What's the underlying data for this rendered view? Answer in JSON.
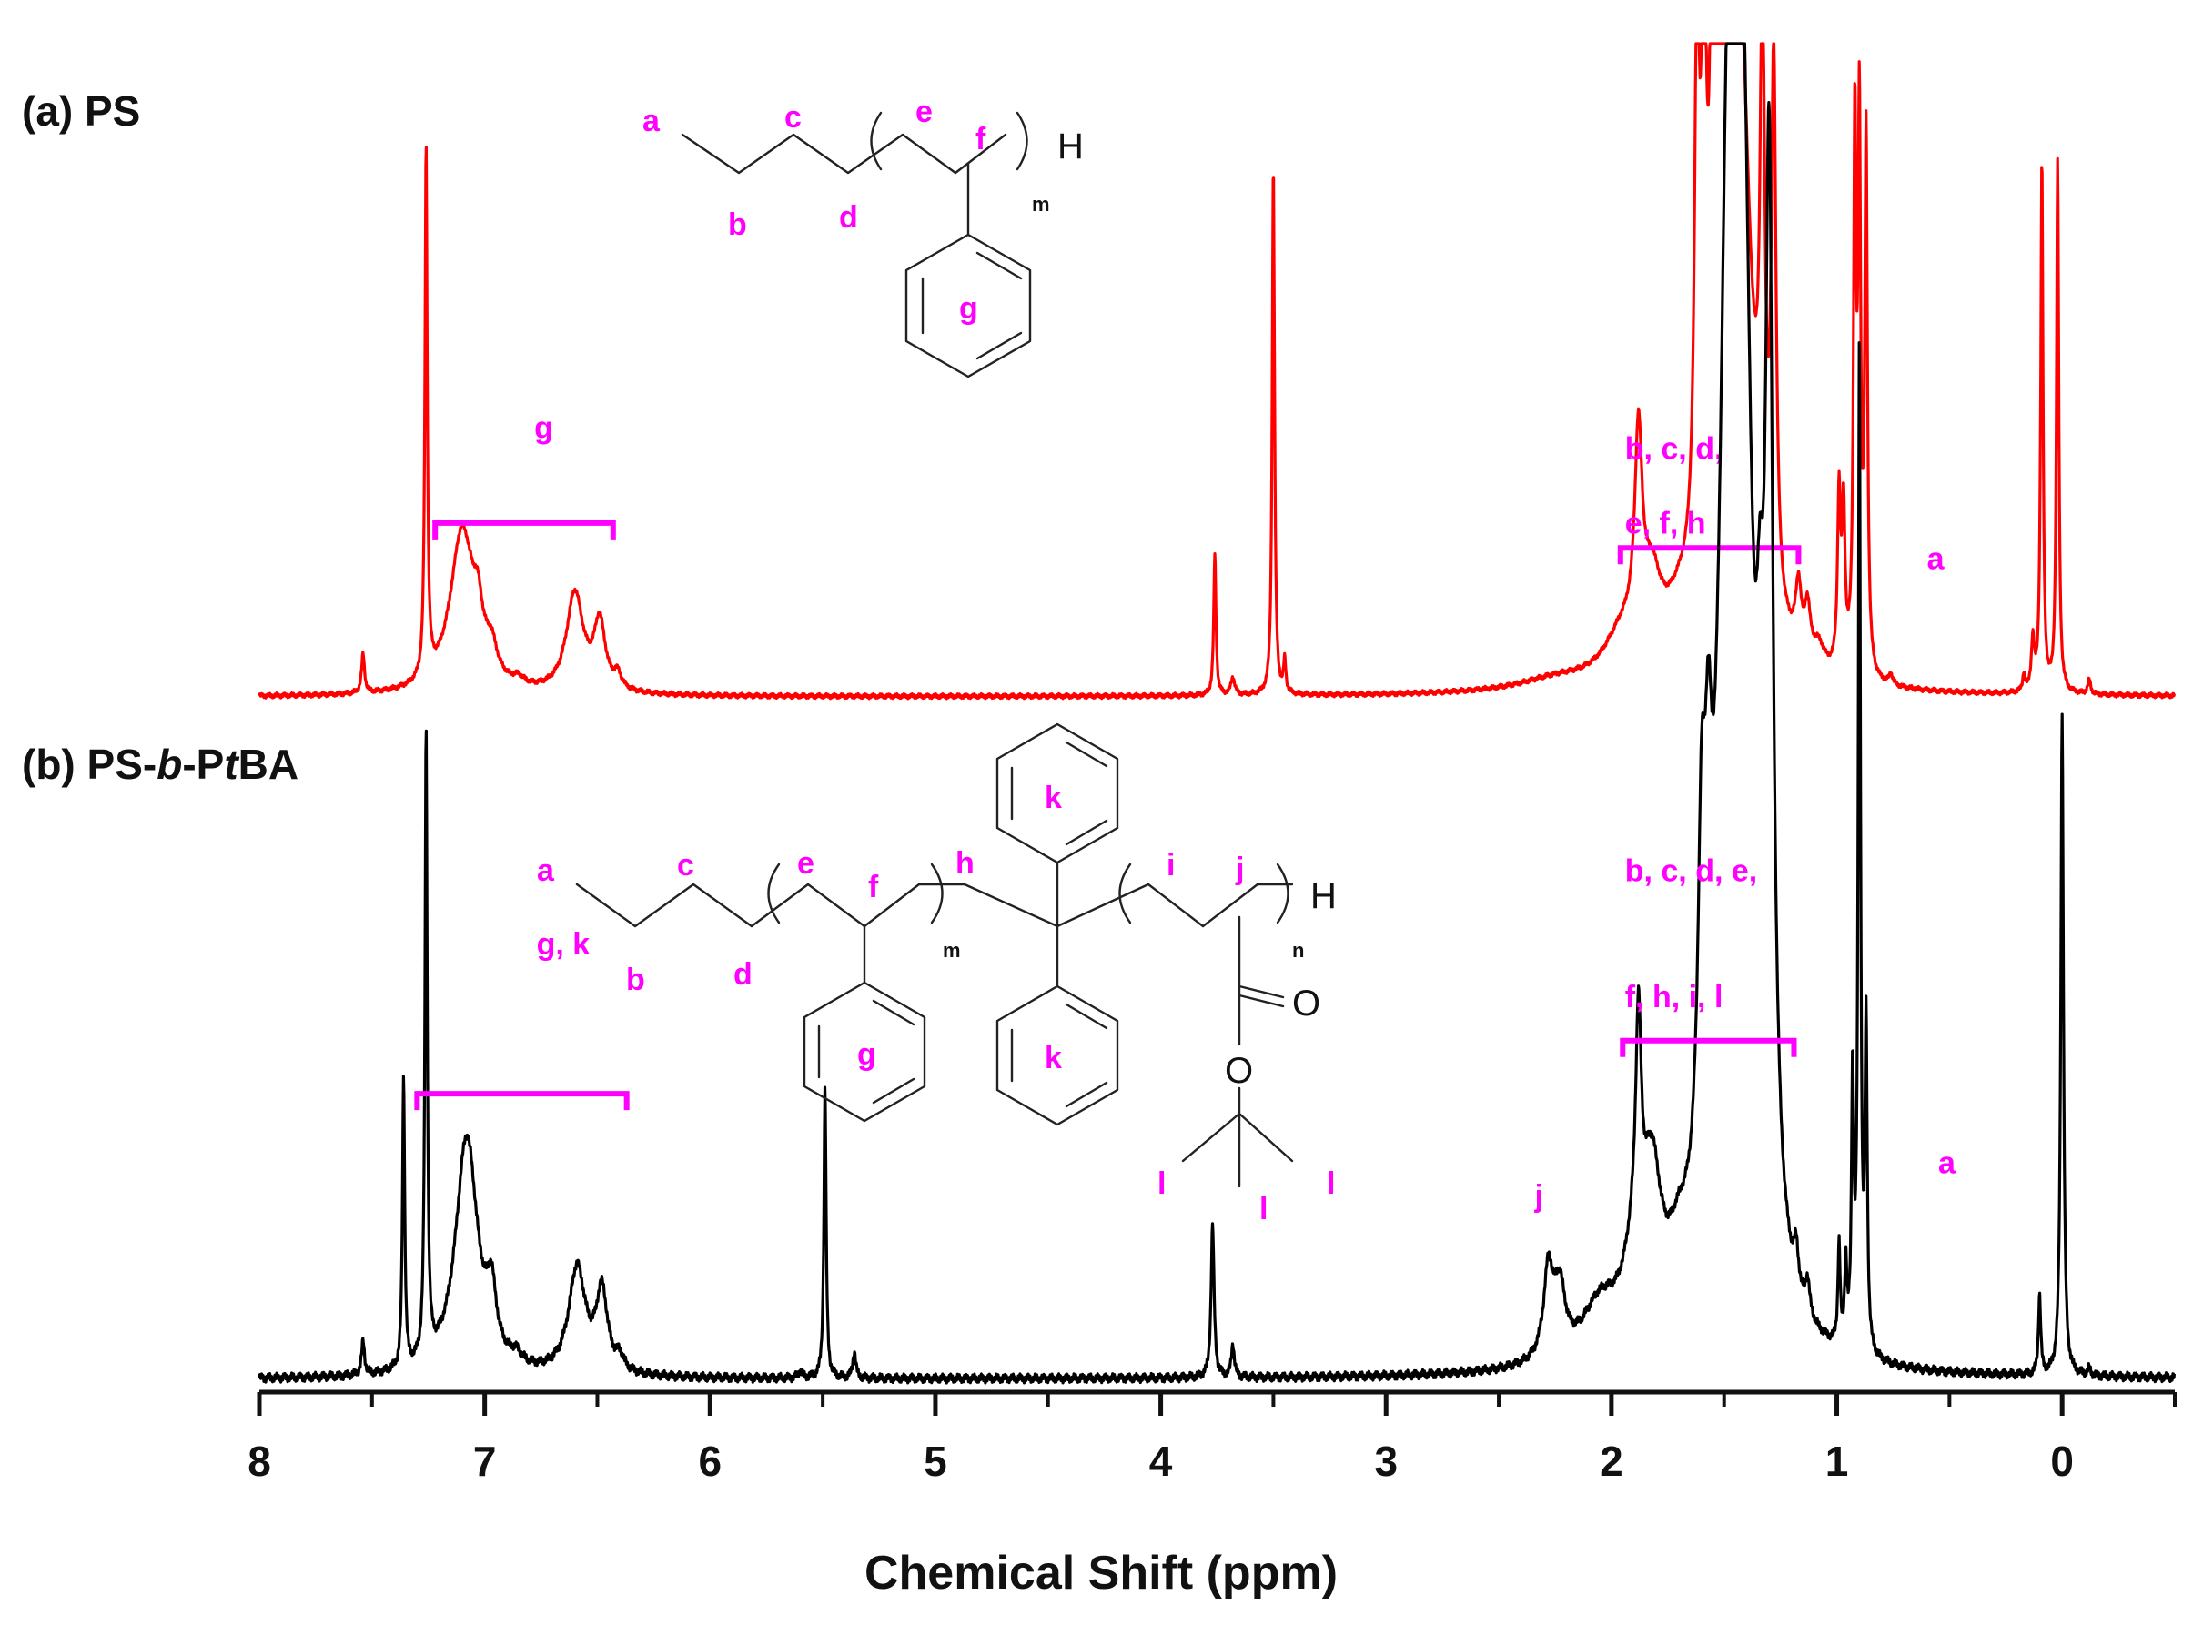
{
  "chart_data": {
    "type": "line",
    "xlabel": "Chemical Shift (ppm)",
    "xlim": [
      8,
      -0.5
    ],
    "x_ticks": [
      "8",
      "7",
      "6",
      "5",
      "4",
      "3",
      "2",
      "1",
      "0"
    ],
    "grid": false,
    "panels": [
      {
        "label_parts": [
          "(a) PS"
        ],
        "series": {
          "color": "#ff0000",
          "peaks": [
            {
              "x": 7.54,
              "h": 0.11,
              "w": 0.008
            },
            {
              "x": 7.26,
              "h": 1.5,
              "w": 0.006
            },
            {
              "x": 7.1,
              "h": 0.46,
              "w": 0.065
            },
            {
              "x": 7.03,
              "h": 0.12,
              "w": 0.025
            },
            {
              "x": 6.97,
              "h": 0.08,
              "w": 0.03
            },
            {
              "x": 6.85,
              "h": 0.02,
              "w": 0.03
            },
            {
              "x": 6.6,
              "h": 0.28,
              "w": 0.045
            },
            {
              "x": 6.49,
              "h": 0.19,
              "w": 0.03
            },
            {
              "x": 6.41,
              "h": 0.04,
              "w": 0.02
            },
            {
              "x": 3.76,
              "h": 0.4,
              "w": 0.006
            },
            {
              "x": 3.68,
              "h": 0.05,
              "w": 0.01
            },
            {
              "x": 3.5,
              "h": 1.5,
              "w": 0.006
            },
            {
              "x": 3.45,
              "h": 0.09,
              "w": 0.006
            },
            {
              "x": 2.25,
              "h": 0.03,
              "w": 0.2
            },
            {
              "x": 1.95,
              "h": 0.12,
              "w": 0.1
            },
            {
              "x": 1.88,
              "h": 0.56,
              "w": 0.02
            },
            {
              "x": 1.82,
              "h": 0.2,
              "w": 0.05
            },
            {
              "x": 1.7,
              "h": 0.1,
              "w": 0.08
            },
            {
              "x": 1.62,
              "h": 1.5,
              "w": 0.012
            },
            {
              "x": 1.59,
              "h": 1.5,
              "w": 0.012
            },
            {
              "x": 1.55,
              "h": 1.5,
              "w": 0.012
            },
            {
              "x": 1.5,
              "h": 1.5,
              "w": 0.05
            },
            {
              "x": 1.43,
              "h": 1.5,
              "w": 0.06
            },
            {
              "x": 1.33,
              "h": 1.5,
              "w": 0.012
            },
            {
              "x": 1.28,
              "h": 1.5,
              "w": 0.012
            },
            {
              "x": 1.17,
              "h": 0.18,
              "w": 0.015
            },
            {
              "x": 1.13,
              "h": 0.14,
              "w": 0.015
            },
            {
              "x": 1.08,
              "h": 0.06,
              "w": 0.03
            },
            {
              "x": 0.99,
              "h": 0.48,
              "w": 0.008
            },
            {
              "x": 0.97,
              "h": 0.44,
              "w": 0.008
            },
            {
              "x": 0.92,
              "h": 1.5,
              "w": 0.007
            },
            {
              "x": 0.9,
              "h": 1.5,
              "w": 0.007
            },
            {
              "x": 0.87,
              "h": 1.5,
              "w": 0.007
            },
            {
              "x": 0.76,
              "h": 0.03,
              "w": 0.01
            },
            {
              "x": 0.17,
              "h": 0.05,
              "w": 0.006
            },
            {
              "x": 0.13,
              "h": 0.14,
              "w": 0.008
            },
            {
              "x": 0.09,
              "h": 1.5,
              "w": 0.006
            },
            {
              "x": 0.02,
              "h": 1.5,
              "w": 0.006
            },
            {
              "x": -0.12,
              "h": 0.04,
              "w": 0.008
            }
          ]
        },
        "annotations": [
          {
            "text": "g",
            "x": 6.78,
            "y": 0.73
          },
          {
            "text": "b, c, d,",
            "x": 1.94,
            "y": 0.67
          },
          {
            "text": "e, f, h",
            "x": 1.94,
            "y": 0.46
          },
          {
            "text": "a",
            "x": 0.6,
            "y": 0.36
          }
        ],
        "brackets": [
          {
            "x1": 7.22,
            "x2": 6.43,
            "y": 0.49
          },
          {
            "x1": 1.96,
            "x2": 1.17,
            "y": 0.42
          }
        ],
        "structure_labels": [
          "a",
          "c",
          "e",
          "f",
          "b",
          "d",
          "g"
        ],
        "structure_H": "H",
        "structure_sub": "m"
      },
      {
        "label_parts": [
          "(b) PS-",
          "b",
          "-P",
          "t",
          "BA"
        ],
        "series": {
          "color": "#000000",
          "peaks": [
            {
              "x": 7.54,
              "h": 0.05,
              "w": 0.008
            },
            {
              "x": 7.36,
              "h": 0.44,
              "w": 0.006
            },
            {
              "x": 7.26,
              "h": 0.95,
              "w": 0.006
            },
            {
              "x": 7.08,
              "h": 0.36,
              "w": 0.06
            },
            {
              "x": 6.97,
              "h": 0.09,
              "w": 0.025
            },
            {
              "x": 6.86,
              "h": 0.015,
              "w": 0.03
            },
            {
              "x": 6.59,
              "h": 0.16,
              "w": 0.045
            },
            {
              "x": 6.48,
              "h": 0.12,
              "w": 0.03
            },
            {
              "x": 6.4,
              "h": 0.02,
              "w": 0.02
            },
            {
              "x": 5.6,
              "h": 0.01,
              "w": 0.01
            },
            {
              "x": 5.49,
              "h": 0.44,
              "w": 0.006
            },
            {
              "x": 5.36,
              "h": 0.04,
              "w": 0.008
            },
            {
              "x": 3.77,
              "h": 0.23,
              "w": 0.008
            },
            {
              "x": 3.68,
              "h": 0.05,
              "w": 0.008
            },
            {
              "x": 2.28,
              "h": 0.13,
              "w": 0.025
            },
            {
              "x": 2.23,
              "h": 0.1,
              "w": 0.03
            },
            {
              "x": 2.05,
              "h": 0.08,
              "w": 0.1
            },
            {
              "x": 1.9,
              "h": 0.1,
              "w": 0.06
            },
            {
              "x": 1.88,
              "h": 0.33,
              "w": 0.015
            },
            {
              "x": 1.82,
              "h": 0.22,
              "w": 0.05
            },
            {
              "x": 1.7,
              "h": 0.08,
              "w": 0.06
            },
            {
              "x": 1.6,
              "h": 0.47,
              "w": 0.02
            },
            {
              "x": 1.57,
              "h": 0.4,
              "w": 0.02
            },
            {
              "x": 1.48,
              "h": 1.5,
              "w": 0.05
            },
            {
              "x": 1.42,
              "h": 1.5,
              "w": 0.05
            },
            {
              "x": 1.34,
              "h": 0.4,
              "w": 0.02
            },
            {
              "x": 1.3,
              "h": 1.5,
              "w": 0.02
            },
            {
              "x": 1.18,
              "h": 0.06,
              "w": 0.012
            },
            {
              "x": 1.13,
              "h": 0.05,
              "w": 0.012
            },
            {
              "x": 0.99,
              "h": 0.15,
              "w": 0.006
            },
            {
              "x": 0.96,
              "h": 0.12,
              "w": 0.006
            },
            {
              "x": 0.93,
              "h": 0.4,
              "w": 0.006
            },
            {
              "x": 0.9,
              "h": 1.5,
              "w": 0.006
            },
            {
              "x": 0.87,
              "h": 0.48,
              "w": 0.006
            },
            {
              "x": 0.1,
              "h": 0.12,
              "w": 0.006
            },
            {
              "x": 0.0,
              "h": 1.0,
              "w": 0.007
            },
            {
              "x": -0.12,
              "h": 0.01,
              "w": 0.008
            }
          ]
        },
        "annotations": [
          {
            "text": "g, k",
            "x": 6.77,
            "y": 0.64
          },
          {
            "text": "b, c, d, e,",
            "x": 1.94,
            "y": 0.75
          },
          {
            "text": "f, h, i, l",
            "x": 1.94,
            "y": 0.56
          },
          {
            "text": "j",
            "x": 2.34,
            "y": 0.26
          },
          {
            "text": "a",
            "x": 0.55,
            "y": 0.31
          }
        ],
        "brackets": [
          {
            "x1": 7.3,
            "x2": 6.37,
            "y": 0.43
          },
          {
            "x1": 1.95,
            "x2": 1.19,
            "y": 0.51
          }
        ],
        "structure_labels": [
          "a",
          "c",
          "e",
          "f",
          "h",
          "k",
          "i",
          "j",
          "b",
          "d",
          "g",
          "k",
          "l",
          "l",
          "l"
        ],
        "structure_H": "H",
        "structure_O": [
          "O",
          "O"
        ],
        "structure_sub": [
          "m",
          "n"
        ]
      }
    ]
  }
}
